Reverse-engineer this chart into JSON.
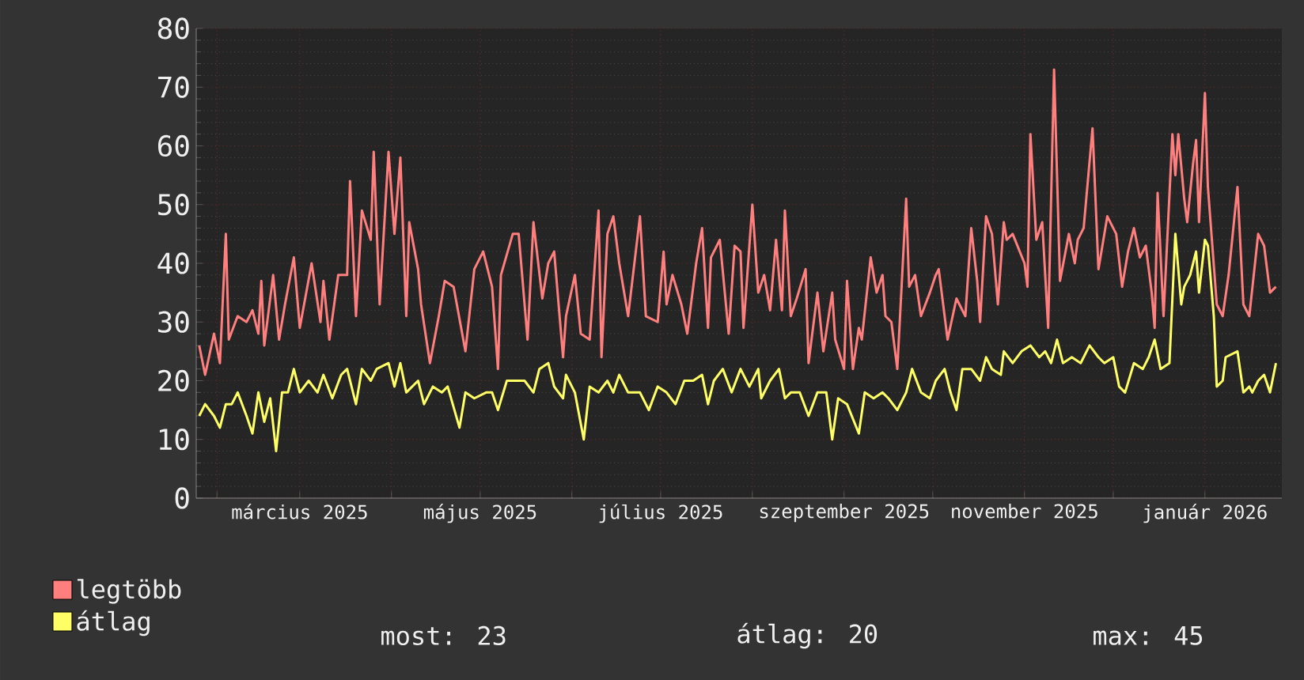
{
  "chart_data": {
    "type": "line",
    "xlim": [
      "2025-01-25",
      "2026-01-27"
    ],
    "xticks": [
      {
        "value": "2025-02-01",
        "label": null
      },
      {
        "value": "2025-03-01",
        "label": "március 2025"
      },
      {
        "value": "2025-04-01",
        "label": null
      },
      {
        "value": "2025-05-01",
        "label": "május 2025"
      },
      {
        "value": "2025-06-01",
        "label": null
      },
      {
        "value": "2025-07-01",
        "label": "július 2025"
      },
      {
        "value": "2025-08-01",
        "label": null
      },
      {
        "value": "2025-09-01",
        "label": "szeptember 2025"
      },
      {
        "value": "2025-10-01",
        "label": null
      },
      {
        "value": "2025-11-01",
        "label": "november 2025"
      },
      {
        "value": "2025-12-01",
        "label": null
      },
      {
        "value": "2026-01-01",
        "label": "január 2026"
      }
    ],
    "ylim": [
      0,
      80
    ],
    "yticks": [
      0,
      10,
      20,
      30,
      40,
      50,
      60,
      70,
      80
    ],
    "grid": true,
    "legend": "bottom left",
    "marker": "none",
    "line_style": "solid",
    "series": [
      {
        "name": "legtöbb",
        "color": "#ff7f7f",
        "x": [
          "2025-01-26",
          "2025-01-28",
          "2025-01-31",
          "2025-02-02",
          "2025-02-04",
          "2025-02-05",
          "2025-02-08",
          "2025-02-11",
          "2025-02-13",
          "2025-02-15",
          "2025-02-16",
          "2025-02-17",
          "2025-02-20",
          "2025-02-22",
          "2025-02-24",
          "2025-02-27",
          "2025-03-01",
          "2025-03-05",
          "2025-03-08",
          "2025-03-09",
          "2025-03-11",
          "2025-03-14",
          "2025-03-17",
          "2025-03-18",
          "2025-03-20",
          "2025-03-22",
          "2025-03-25",
          "2025-03-26",
          "2025-03-28",
          "2025-03-31",
          "2025-04-02",
          "2025-04-04",
          "2025-04-06",
          "2025-04-07",
          "2025-04-10",
          "2025-04-11",
          "2025-04-14",
          "2025-04-17",
          "2025-04-19",
          "2025-04-22",
          "2025-04-26",
          "2025-04-29",
          "2025-05-02",
          "2025-05-05",
          "2025-05-07",
          "2025-05-08",
          "2025-05-12",
          "2025-05-14",
          "2025-05-17",
          "2025-05-19",
          "2025-05-22",
          "2025-05-24",
          "2025-05-26",
          "2025-05-29",
          "2025-05-30",
          "2025-06-02",
          "2025-06-04",
          "2025-06-07",
          "2025-06-10",
          "2025-06-11",
          "2025-06-13",
          "2025-06-15",
          "2025-06-17",
          "2025-06-20",
          "2025-06-24",
          "2025-06-26",
          "2025-06-30",
          "2025-07-02",
          "2025-07-03",
          "2025-07-05",
          "2025-07-08",
          "2025-07-10",
          "2025-07-13",
          "2025-07-15",
          "2025-07-17",
          "2025-07-18",
          "2025-07-21",
          "2025-07-24",
          "2025-07-26",
          "2025-07-28",
          "2025-07-29",
          "2025-07-31",
          "2025-08-01",
          "2025-08-03",
          "2025-08-05",
          "2025-08-07",
          "2025-08-09",
          "2025-08-11",
          "2025-08-12",
          "2025-08-14",
          "2025-08-16",
          "2025-08-19",
          "2025-08-20",
          "2025-08-23",
          "2025-08-25",
          "2025-08-28",
          "2025-08-29",
          "2025-09-01",
          "2025-09-02",
          "2025-09-04",
          "2025-09-06",
          "2025-09-07",
          "2025-09-10",
          "2025-09-12",
          "2025-09-14",
          "2025-09-15",
          "2025-09-17",
          "2025-09-19",
          "2025-09-22",
          "2025-09-23",
          "2025-09-25",
          "2025-09-27",
          "2025-09-30",
          "2025-10-02",
          "2025-10-03",
          "2025-10-06",
          "2025-10-09",
          "2025-10-10",
          "2025-10-12",
          "2025-10-14",
          "2025-10-16",
          "2025-10-17",
          "2025-10-19",
          "2025-10-21",
          "2025-10-23",
          "2025-10-25",
          "2025-10-26",
          "2025-10-28",
          "2025-11-01",
          "2025-11-02",
          "2025-11-03",
          "2025-11-05",
          "2025-11-07",
          "2025-11-09",
          "2025-11-11",
          "2025-11-13",
          "2025-11-16",
          "2025-11-18",
          "2025-11-19",
          "2025-11-21",
          "2025-11-24",
          "2025-11-26",
          "2025-11-27",
          "2025-11-29",
          "2025-12-02",
          "2025-12-04",
          "2025-12-06",
          "2025-12-08",
          "2025-12-10",
          "2025-12-12",
          "2025-12-14",
          "2025-12-15",
          "2025-12-16",
          "2025-12-18",
          "2025-12-21",
          "2025-12-22",
          "2025-12-23",
          "2025-12-25",
          "2025-12-26",
          "2025-12-28",
          "2025-12-29",
          "2025-12-30",
          "2026-01-01",
          "2026-01-02",
          "2026-01-05",
          "2026-01-07",
          "2026-01-09",
          "2026-01-12",
          "2026-01-14",
          "2026-01-16",
          "2026-01-19",
          "2026-01-21",
          "2026-01-23",
          "2026-01-25"
        ],
        "values": [
          26,
          21,
          28,
          23,
          45,
          27,
          31,
          30,
          32,
          28,
          37,
          26,
          38,
          27,
          33,
          41,
          29,
          40,
          30,
          37,
          27,
          38,
          38,
          54,
          31,
          49,
          44,
          59,
          33,
          59,
          45,
          58,
          31,
          47,
          39,
          33,
          23,
          31,
          37,
          36,
          25,
          39,
          42,
          36,
          22,
          38,
          45,
          45,
          27,
          47,
          34,
          40,
          42,
          24,
          31,
          38,
          28,
          27,
          49,
          24,
          45,
          48,
          40,
          31,
          48,
          31,
          30,
          42,
          33,
          38,
          33,
          28,
          40,
          46,
          29,
          41,
          44,
          28,
          43,
          42,
          29,
          43,
          50,
          35,
          38,
          32,
          44,
          32,
          49,
          31,
          34,
          39,
          23,
          35,
          25,
          35,
          27,
          22,
          37,
          22,
          29,
          27,
          41,
          35,
          38,
          31,
          30,
          22,
          51,
          36,
          38,
          31,
          35,
          38,
          39,
          27,
          34,
          33,
          31,
          46,
          37,
          30,
          48,
          45,
          33,
          47,
          44,
          45,
          40,
          36,
          62,
          44,
          47,
          29,
          73,
          37,
          45,
          40,
          44,
          46,
          63,
          39,
          42,
          48,
          45,
          36,
          42,
          46,
          41,
          43,
          35,
          29,
          52,
          31,
          62,
          55,
          62,
          51,
          47,
          57,
          61,
          47,
          69,
          53,
          33,
          31,
          38,
          53,
          33,
          31,
          45,
          43,
          35,
          36
        ]
      },
      {
        "name": "átlag",
        "color": "#ffff66",
        "x": [
          "2025-01-26",
          "2025-01-28",
          "2025-01-31",
          "2025-02-02",
          "2025-02-04",
          "2025-02-06",
          "2025-02-08",
          "2025-02-11",
          "2025-02-13",
          "2025-02-15",
          "2025-02-17",
          "2025-02-19",
          "2025-02-21",
          "2025-02-23",
          "2025-02-25",
          "2025-02-27",
          "2025-03-01",
          "2025-03-04",
          "2025-03-07",
          "2025-03-09",
          "2025-03-12",
          "2025-03-15",
          "2025-03-17",
          "2025-03-20",
          "2025-03-22",
          "2025-03-25",
          "2025-03-27",
          "2025-03-31",
          "2025-04-02",
          "2025-04-04",
          "2025-04-06",
          "2025-04-10",
          "2025-04-12",
          "2025-04-15",
          "2025-04-18",
          "2025-04-20",
          "2025-04-24",
          "2025-04-26",
          "2025-04-29",
          "2025-05-03",
          "2025-05-05",
          "2025-05-07",
          "2025-05-10",
          "2025-05-13",
          "2025-05-16",
          "2025-05-19",
          "2025-05-21",
          "2025-05-24",
          "2025-05-26",
          "2025-05-29",
          "2025-05-30",
          "2025-06-02",
          "2025-06-05",
          "2025-06-07",
          "2025-06-10",
          "2025-06-13",
          "2025-06-15",
          "2025-06-17",
          "2025-06-20",
          "2025-06-24",
          "2025-06-27",
          "2025-06-30",
          "2025-07-03",
          "2025-07-06",
          "2025-07-09",
          "2025-07-12",
          "2025-07-15",
          "2025-07-17",
          "2025-07-19",
          "2025-07-22",
          "2025-07-25",
          "2025-07-28",
          "2025-07-31",
          "2025-08-03",
          "2025-08-04",
          "2025-08-07",
          "2025-08-10",
          "2025-08-12",
          "2025-08-14",
          "2025-08-17",
          "2025-08-20",
          "2025-08-23",
          "2025-08-26",
          "2025-08-28",
          "2025-08-30",
          "2025-09-02",
          "2025-09-06",
          "2025-09-08",
          "2025-09-11",
          "2025-09-14",
          "2025-09-16",
          "2025-09-19",
          "2025-09-22",
          "2025-09-24",
          "2025-09-27",
          "2025-09-30",
          "2025-10-02",
          "2025-10-05",
          "2025-10-07",
          "2025-10-09",
          "2025-10-11",
          "2025-10-14",
          "2025-10-17",
          "2025-10-19",
          "2025-10-21",
          "2025-10-24",
          "2025-10-25",
          "2025-10-28",
          "2025-10-31",
          "2025-11-03",
          "2025-11-06",
          "2025-11-08",
          "2025-11-10",
          "2025-11-12",
          "2025-11-14",
          "2025-11-17",
          "2025-11-20",
          "2025-11-23",
          "2025-11-26",
          "2025-11-28",
          "2025-12-01",
          "2025-12-03",
          "2025-12-05",
          "2025-12-08",
          "2025-12-11",
          "2025-12-13",
          "2025-12-15",
          "2025-12-17",
          "2025-12-20",
          "2025-12-21",
          "2025-12-22",
          "2025-12-24",
          "2025-12-25",
          "2025-12-27",
          "2025-12-29",
          "2025-12-30",
          "2026-01-01",
          "2026-01-02",
          "2026-01-04",
          "2026-01-05",
          "2026-01-07",
          "2026-01-08",
          "2026-01-12",
          "2026-01-14",
          "2026-01-16",
          "2026-01-17",
          "2026-01-19",
          "2026-01-21",
          "2026-01-23",
          "2026-01-25"
        ],
        "values": [
          14,
          16,
          14,
          12,
          16,
          16,
          18,
          14,
          11,
          18,
          13,
          17,
          8,
          18,
          18,
          22,
          18,
          20,
          18,
          21,
          17,
          21,
          22,
          16,
          22,
          20,
          22,
          23,
          19,
          23,
          18,
          20,
          16,
          19,
          18,
          19,
          12,
          18,
          17,
          18,
          18,
          15,
          20,
          20,
          20,
          18,
          22,
          23,
          19,
          17,
          21,
          18,
          10,
          19,
          18,
          20,
          18,
          21,
          18,
          18,
          15,
          19,
          18,
          16,
          20,
          20,
          21,
          16,
          20,
          22,
          18,
          22,
          19,
          22,
          17,
          20,
          22,
          17,
          18,
          18,
          14,
          18,
          18,
          10,
          17,
          16,
          11,
          18,
          17,
          18,
          17,
          15,
          18,
          22,
          18,
          17,
          20,
          22,
          18,
          15,
          22,
          22,
          20,
          24,
          22,
          21,
          25,
          23,
          25,
          26,
          24,
          25,
          23,
          27,
          23,
          24,
          23,
          26,
          24,
          23,
          24,
          19,
          18,
          23,
          22,
          24,
          27,
          22,
          23,
          34,
          45,
          33,
          36,
          38,
          42,
          35,
          44,
          43,
          31,
          19,
          20,
          24,
          25,
          18,
          19,
          18,
          20,
          21,
          18,
          23
        ]
      }
    ],
    "annotations": [
      "most: 23",
      "átlag: 20",
      "max: 45"
    ]
  }
}
